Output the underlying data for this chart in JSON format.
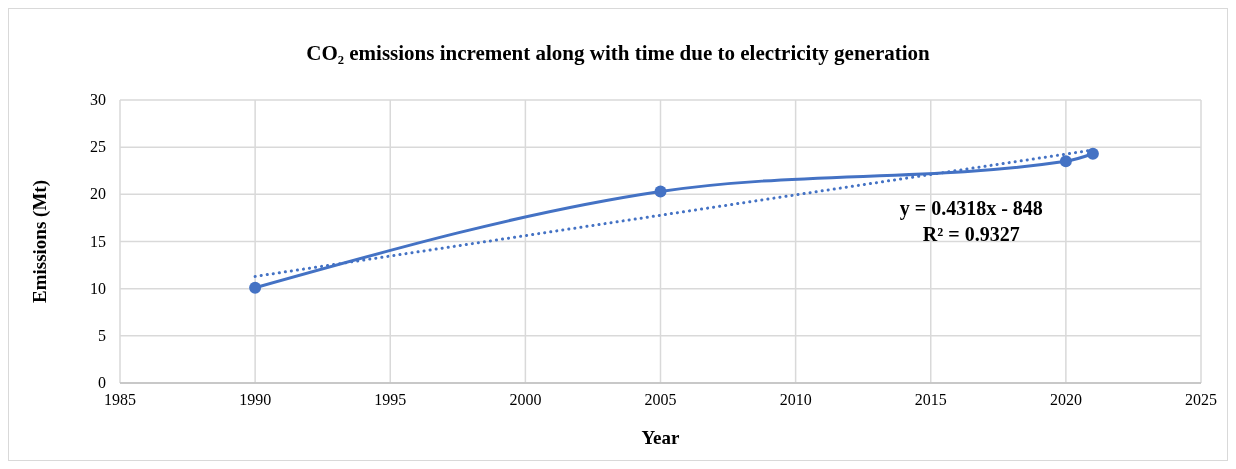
{
  "chart_data": {
    "type": "line",
    "title": "CO₂ emissions increment along with time due to electricity generation",
    "xlabel": "Year",
    "ylabel": "Emissions (Mt)",
    "x": [
      1990,
      2005,
      2020,
      2021
    ],
    "series": [
      {
        "name": null,
        "color": "#4472c4",
        "values": [
          10.1,
          20.3,
          23.5,
          24.3
        ],
        "marker": "circle",
        "line_style": "solid"
      },
      {
        "type": "line",
        "color": "#4472c4",
        "x": [
          1990,
          2021
        ],
        "values": [
          11.3,
          24.7
        ],
        "marker": "none",
        "line_style": "dotted"
      }
    ],
    "annotations": [
      "y = 0.4318x - 848",
      "R² = 0.9327"
    ],
    "xlim": [
      1985,
      2025
    ],
    "xticks": [
      1985,
      1990,
      1995,
      2000,
      2005,
      2010,
      2015,
      2020,
      2025
    ],
    "ylim": [
      0,
      30
    ],
    "yticks": [
      0,
      5,
      10,
      15,
      20,
      25,
      30
    ],
    "grid": true
  }
}
